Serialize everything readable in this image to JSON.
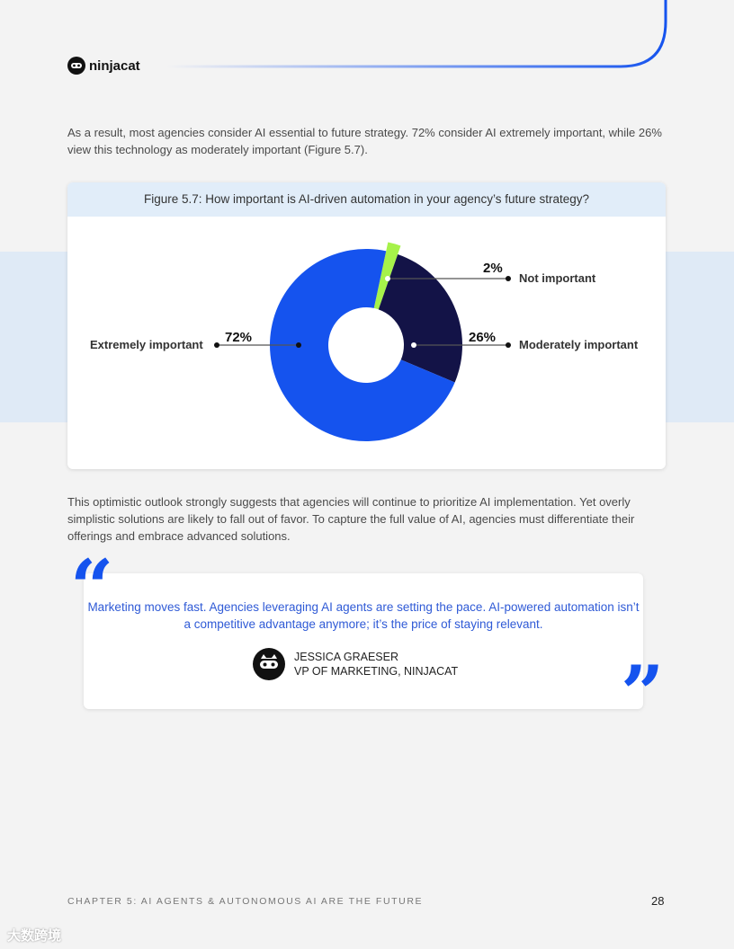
{
  "brand": {
    "name": "ninjacat",
    "accent": "#1553ee"
  },
  "intro": "As a result, most agencies consider AI essential to future strategy. 72% consider AI extremely important, while 26% view this technology as moderately important (Figure 5.7).",
  "figure": {
    "title": "Figure 5.7: How important is AI-driven automation in your agency’s future strategy?"
  },
  "chart_data": {
    "type": "pie",
    "variant": "donut",
    "title": "Figure 5.7: How important is AI-driven automation in your agency’s future strategy?",
    "categories": [
      "Not important",
      "Moderately important",
      "Extremely important"
    ],
    "values": [
      2,
      26,
      72
    ],
    "labels": [
      "2%",
      "26%",
      "72%"
    ],
    "colors": [
      "#a6f24a",
      "#131347",
      "#1553ee"
    ]
  },
  "body": "This optimistic outlook strongly suggests that agencies will continue to prioritize AI implementation. Yet overly simplistic solutions are likely to fall out of favor. To capture the full value of AI, agencies must differentiate their offerings and embrace advanced solutions.",
  "quote": {
    "open": "“",
    "close": "”",
    "text": "Marketing moves fast. Agencies leveraging AI agents are setting the pace. AI-powered automation isn’t a competitive advantage anymore; it’s the price of staying relevant.",
    "name": "JESSICA GRAESER",
    "role": "VP OF MARKETING, NINJACAT"
  },
  "footer": {
    "chapter": "CHAPTER 5: AI AGENTS & AUTONOMOUS AI ARE THE FUTURE",
    "page": "28"
  },
  "watermark": "大数跨境"
}
